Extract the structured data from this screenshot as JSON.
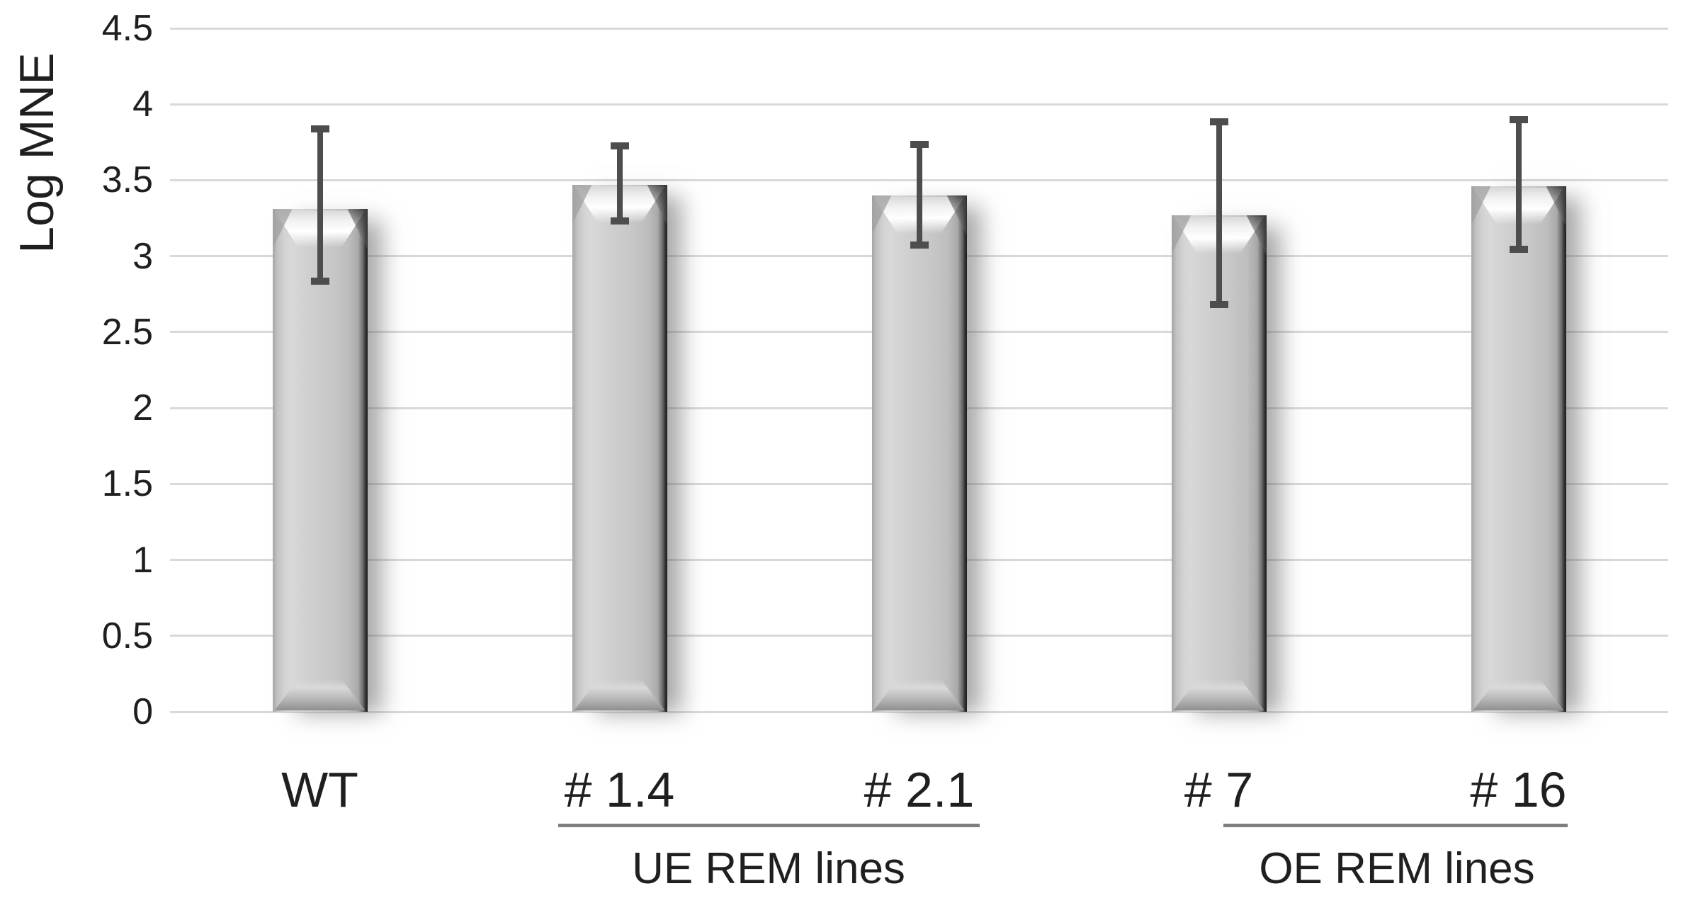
{
  "colors": {
    "background": "#ffffff",
    "text": "#1f1f1f",
    "gridline": "#d9d9d9",
    "error_bar": "#4d4d4d",
    "group_rule": "#7f7f7f",
    "bar_body": "#c8c8c8",
    "bar_edge_dark": "#2f2f2f",
    "bar_highlight": "#ffffff"
  },
  "chart_data": {
    "type": "bar",
    "title": "",
    "xlabel": "",
    "ylabel": "Log MNE",
    "ylim": [
      0,
      4.5
    ],
    "ytick_step": 0.5,
    "ytick_labels": [
      "0",
      "0.5",
      "1",
      "1.5",
      "2",
      "2.5",
      "3",
      "3.5",
      "4",
      "4.5"
    ],
    "grid": true,
    "legend": false,
    "categories": [
      "WT",
      "# 1.4",
      "# 2.1",
      "# 7",
      "# 16"
    ],
    "values": [
      3.31,
      3.47,
      3.4,
      3.27,
      3.46
    ],
    "error_high": [
      3.86,
      3.75,
      3.76,
      3.91,
      3.92
    ],
    "error_low": [
      2.81,
      3.21,
      3.05,
      2.66,
      3.02
    ],
    "bar_style": "3d-bevel-silver",
    "groups": [
      {
        "label": "UE REM lines",
        "start_index": 1,
        "end_index": 2
      },
      {
        "label": "OE REM lines",
        "start_index": 3,
        "end_index": 4
      }
    ]
  }
}
